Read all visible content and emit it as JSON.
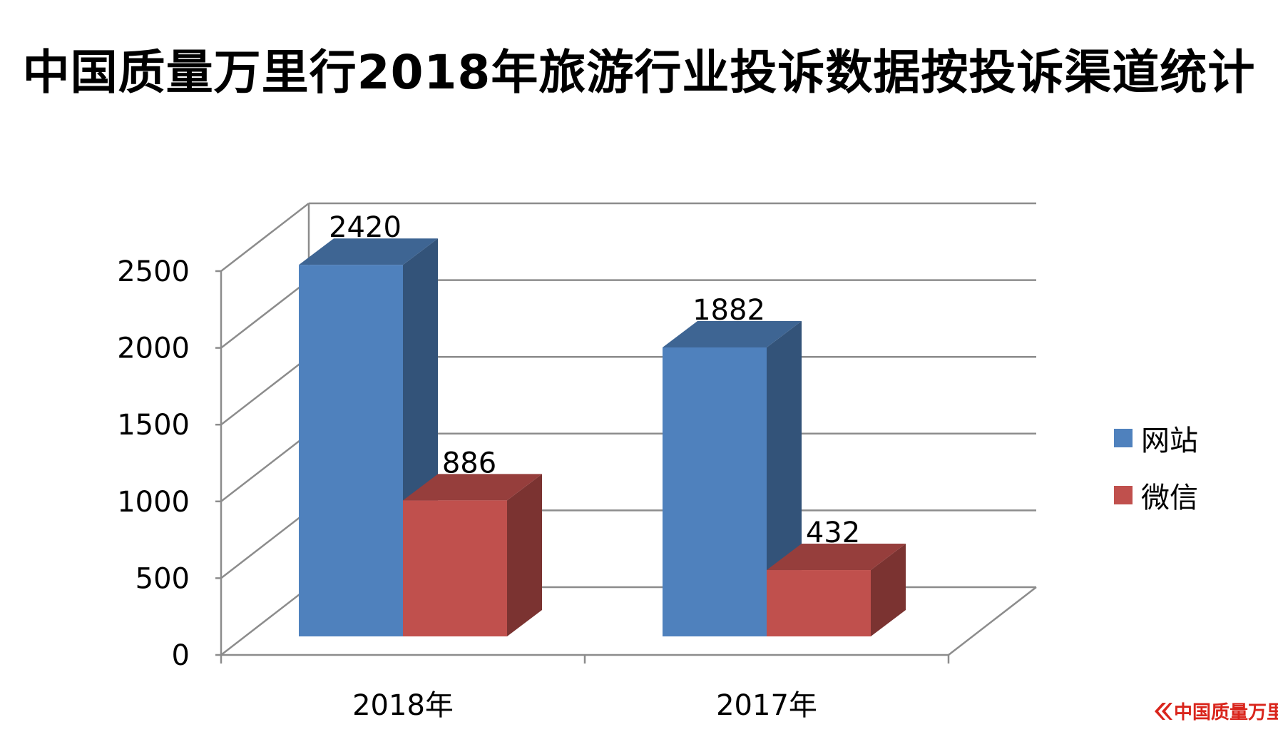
{
  "chart_data": {
    "type": "bar",
    "title": "中国质量万里行2018年旅游行业投诉数据按投诉渠道统计",
    "categories": [
      "2018年",
      "2017年"
    ],
    "series": [
      {
        "name": "网站",
        "values": [
          2420,
          1882
        ],
        "color": "#4f81bd"
      },
      {
        "name": "微信",
        "values": [
          886,
          432
        ],
        "color": "#c0504d"
      }
    ],
    "ylim": [
      0,
      2500
    ],
    "yticks": [
      0,
      500,
      1000,
      1500,
      2000,
      2500
    ],
    "ytick_labels": [
      "0",
      "500",
      "1000",
      "1500",
      "2000",
      "2500"
    ],
    "data_labels": [
      "2420",
      "886",
      "1882",
      "432"
    ],
    "grid": true,
    "legend_position": "right",
    "three_d": true
  },
  "watermark": {
    "text": "中国质量万里行",
    "color": "#d9251c",
    "icon": "chevron-logo-icon"
  }
}
